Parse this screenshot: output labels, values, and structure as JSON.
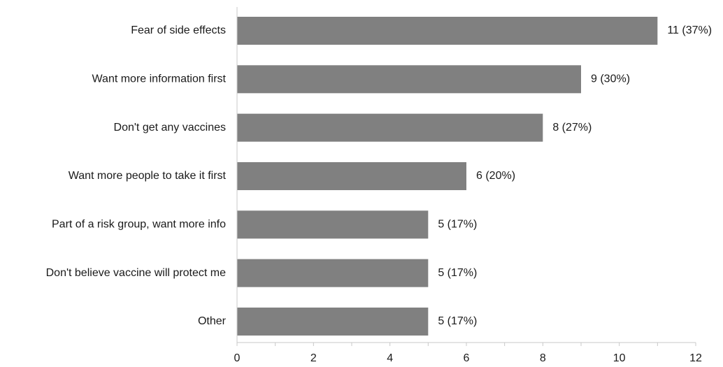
{
  "chart_data": {
    "type": "bar",
    "orientation": "horizontal",
    "categories": [
      "Fear of side effects",
      "Want more information first",
      "Don't get any vaccines",
      "Want more people to take it first",
      "Part of a risk group, want more info",
      "Don't believe vaccine will protect me",
      "Other"
    ],
    "values": [
      11,
      9,
      8,
      6,
      5,
      5,
      5
    ],
    "data_labels": [
      "11 (37%)",
      "9 (30%)",
      "8 (27%)",
      "6 (20%)",
      "5 (17%)",
      "5 (17%)",
      "5 (17%)"
    ],
    "xlim": [
      0,
      12
    ],
    "xticks": [
      0,
      2,
      4,
      6,
      8,
      10,
      12
    ],
    "xtick_labels": [
      "0",
      "2",
      "4",
      "6",
      "8",
      "10",
      "12"
    ],
    "title": "",
    "xlabel": "",
    "ylabel": "",
    "grid": false,
    "bar_color": "#808080"
  }
}
